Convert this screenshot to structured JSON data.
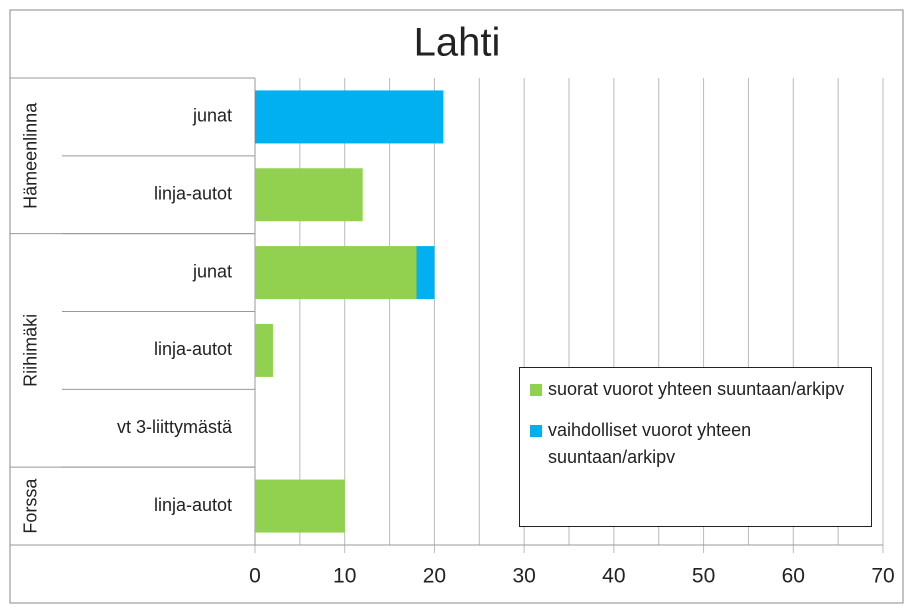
{
  "chart_data": {
    "type": "bar",
    "orientation": "horizontal",
    "stacked": true,
    "title": "Lahti",
    "groups": [
      {
        "name": "Hämeenlinna",
        "span": 2
      },
      {
        "name": "Riihimäki",
        "span": 3
      },
      {
        "name": "Forssa",
        "span": 1
      }
    ],
    "categories": [
      "junat",
      "linja-autot",
      "junat",
      "linja-autot",
      "vt 3-liittymästä",
      "linja-autot"
    ],
    "series": [
      {
        "name": "suorat vuorot yhteen suuntaan/arkipv",
        "color": "#92d050",
        "values": [
          0,
          12,
          18,
          2,
          0,
          10
        ]
      },
      {
        "name": "vaihdolliset vuorot yhteen suuntaan/arkipv",
        "color": "#00b0f0",
        "values": [
          21,
          0,
          2,
          0,
          0,
          0
        ]
      }
    ],
    "xlim": [
      0,
      70
    ],
    "xticks": [
      0,
      10,
      20,
      30,
      40,
      50,
      60,
      70
    ],
    "minor_xticks": [
      5,
      15,
      25,
      35,
      45,
      55,
      65
    ],
    "grid": true,
    "legend": "lower right"
  }
}
